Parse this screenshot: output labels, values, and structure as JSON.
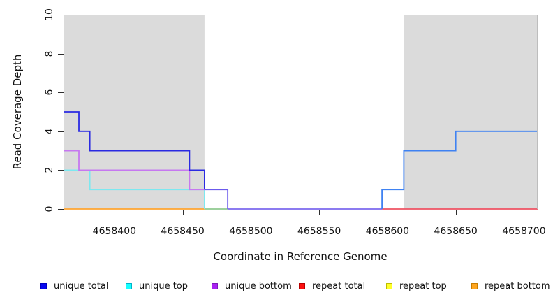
{
  "chart_data": {
    "type": "line",
    "subtype": "step-coverage-plot",
    "title": "",
    "xlabel": "Coordinate in Reference Genome",
    "ylabel": "Read Coverage Depth",
    "xlim": [
      4658363,
      4658710
    ],
    "ylim": [
      0,
      10
    ],
    "x_ticks": [
      4658400,
      4658450,
      4658500,
      4658550,
      4658600,
      4658650,
      4658700
    ],
    "y_ticks": [
      0,
      2,
      4,
      6,
      8,
      10
    ],
    "grid": false,
    "legend_position": "bottom",
    "shade_color": "#dbdbdb",
    "shaded_regions": [
      {
        "x0": 4658363,
        "x1": 4658466
      },
      {
        "x0": 4658612,
        "x1": 4658710
      }
    ],
    "series": [
      {
        "name": "unique total",
        "color": "#0000ee",
        "steps": [
          [
            4658363,
            5
          ],
          [
            4658374,
            4
          ],
          [
            4658382,
            3
          ],
          [
            4658455,
            2
          ],
          [
            4658466,
            1
          ],
          [
            4658483,
            0
          ],
          [
            4658596,
            1
          ],
          [
            4658612,
            3
          ],
          [
            4658650,
            4
          ],
          [
            4658710,
            4
          ]
        ]
      },
      {
        "name": "unique top",
        "color": "#00ffff",
        "steps": [
          [
            4658363,
            2
          ],
          [
            4658382,
            1
          ],
          [
            4658466,
            0
          ],
          [
            4658596,
            1
          ],
          [
            4658612,
            3
          ],
          [
            4658650,
            4
          ],
          [
            4658710,
            4
          ]
        ]
      },
      {
        "name": "unique bottom",
        "color": "#a020f0",
        "steps": [
          [
            4658363,
            3
          ],
          [
            4658374,
            2
          ],
          [
            4658455,
            1
          ],
          [
            4658483,
            0
          ],
          [
            4658710,
            0
          ]
        ]
      },
      {
        "name": "repeat total",
        "color": "#ff0000",
        "steps": [
          [
            4658596,
            0
          ],
          [
            4658710,
            0
          ]
        ]
      },
      {
        "name": "repeat top",
        "color": "#ffff00",
        "steps": [
          [
            4658466,
            0
          ],
          [
            4658483,
            0
          ]
        ]
      },
      {
        "name": "repeat bottom",
        "color": "#ffa500",
        "steps": [
          [
            4658363,
            0
          ],
          [
            4658466,
            0
          ]
        ]
      }
    ],
    "rendered_polylines": [
      {
        "color": "#ffa430",
        "points": [
          [
            4658363,
            0
          ],
          [
            4658466,
            0
          ]
        ]
      },
      {
        "color": "#8fc98f",
        "points": [
          [
            4658466,
            0
          ],
          [
            4658483,
            0
          ]
        ]
      },
      {
        "color": "#7b68ee",
        "points": [
          [
            4658483,
            0
          ],
          [
            4658596,
            0
          ]
        ]
      },
      {
        "color": "#ee5263",
        "points": [
          [
            4658596,
            0
          ],
          [
            4658710,
            0
          ]
        ]
      },
      {
        "color": "#7de8f0",
        "points": [
          [
            4658363,
            2
          ],
          [
            4658382,
            2
          ],
          [
            4658382,
            1
          ],
          [
            4658466,
            1
          ],
          [
            4658466,
            0
          ]
        ]
      },
      {
        "color": "#c678f0",
        "points": [
          [
            4658363,
            3
          ],
          [
            4658374,
            3
          ],
          [
            4658374,
            2
          ],
          [
            4658455,
            2
          ],
          [
            4658455,
            1
          ],
          [
            4658466,
            1
          ]
        ]
      },
      {
        "color": "#2b2be2",
        "points": [
          [
            4658363,
            5
          ],
          [
            4658374,
            5
          ],
          [
            4658374,
            4
          ],
          [
            4658382,
            4
          ],
          [
            4658382,
            3
          ],
          [
            4658455,
            3
          ],
          [
            4658455,
            2
          ],
          [
            4658466,
            2
          ],
          [
            4658466,
            1
          ]
        ]
      },
      {
        "color": "#6b5aec",
        "points": [
          [
            4658466,
            1
          ],
          [
            4658483,
            1
          ],
          [
            4658483,
            0
          ]
        ]
      },
      {
        "color": "#3f82f2",
        "points": [
          [
            4658596,
            0
          ],
          [
            4658596,
            1
          ],
          [
            4658612,
            1
          ],
          [
            4658612,
            3
          ],
          [
            4658650,
            3
          ],
          [
            4658650,
            4
          ],
          [
            4658710,
            4
          ]
        ]
      }
    ]
  },
  "legend": {
    "items": [
      {
        "label": "unique total",
        "fill": "#0808f0",
        "border": "#0000c0"
      },
      {
        "label": "unique top",
        "fill": "#16ffff",
        "border": "#00b2c8"
      },
      {
        "label": "unique bottom",
        "fill": "#a822f2",
        "border": "#7d18b8"
      },
      {
        "label": "repeat total",
        "fill": "#fb1010",
        "border": "#b80000"
      },
      {
        "label": "repeat top",
        "fill": "#ffff28",
        "border": "#bdbd00"
      },
      {
        "label": "repeat bottom",
        "fill": "#ffa51e",
        "border": "#c67c00"
      }
    ]
  }
}
